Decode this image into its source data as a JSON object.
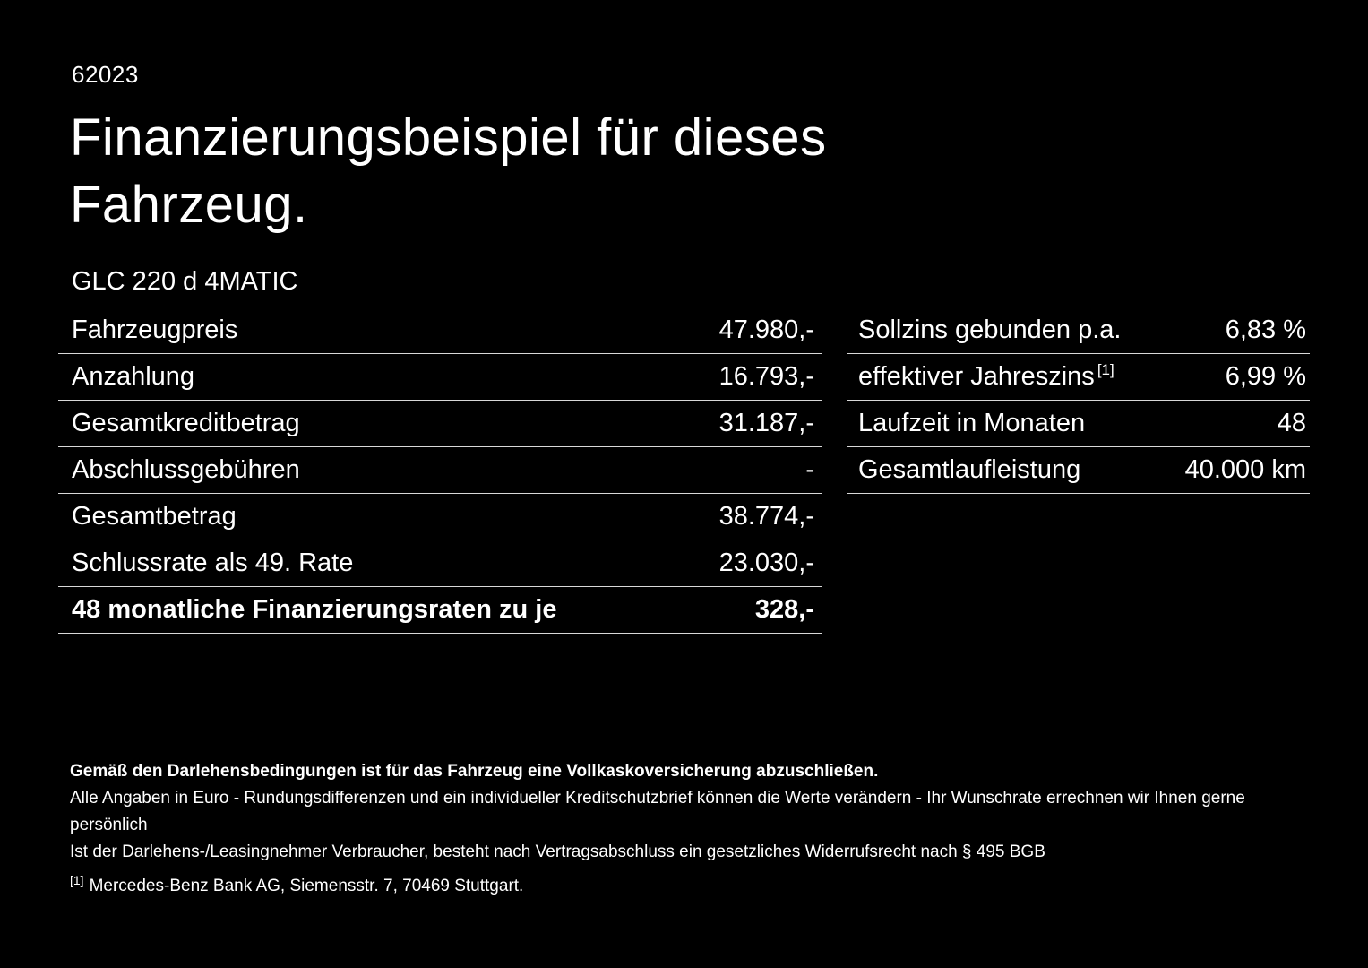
{
  "page": {
    "code": "62023",
    "title_line1": "Finanzierungsbeispiel für dieses",
    "title_line2": "Fahrzeug.",
    "vehicle_model": "GLC 220 d 4MATIC"
  },
  "financing_table": {
    "rows": [
      {
        "label": "Fahrzeugpreis",
        "value": "47.980,-"
      },
      {
        "label": "Anzahlung",
        "value": "16.793,-"
      },
      {
        "label": "Gesamtkreditbetrag",
        "value": "31.187,-"
      },
      {
        "label": "Abschlussgebühren",
        "value": "-"
      },
      {
        "label": "Gesamtbetrag",
        "value": "38.774,-"
      },
      {
        "label": "Schlussrate als 49. Rate",
        "value": "23.030,-"
      },
      {
        "label": "48 monatliche Finanzierungsraten zu je",
        "value": "328,-"
      }
    ]
  },
  "conditions_table": {
    "rows": [
      {
        "label": "Sollzins gebunden p.a.",
        "value": "6,83 %"
      },
      {
        "label": "effektiver Jahreszins",
        "label_sup": "[1]",
        "value": "6,99 %"
      },
      {
        "label": "Laufzeit in Monaten",
        "value": "48"
      },
      {
        "label": "Gesamtlaufleistung",
        "value": "40.000 km"
      }
    ]
  },
  "footnotes": {
    "insurance_note": "Gemäß den Darlehensbedingungen ist für das Fahrzeug eine Vollkaskoversicherung abzuschließen.",
    "euro_note": "Alle Angaben in Euro - Rundungsdifferenzen und ein individueller Kreditschutzbrief können die Werte verändern - Ihr Wunschrate errechnen wir Ihnen gerne persönlich",
    "withdrawal_note": "Ist der Darlehens-/Leasingnehmer Verbraucher, besteht nach Vertragsabschluss ein gesetzliches Widerrufsrecht nach § 495 BGB",
    "bank_marker": "[1]",
    "bank_note": "Mercedes-Benz Bank AG, Siemensstr. 7, 70469 Stuttgart."
  },
  "colors": {
    "background": "#000000",
    "text": "#ffffff",
    "divider": "#d8d8d8"
  }
}
